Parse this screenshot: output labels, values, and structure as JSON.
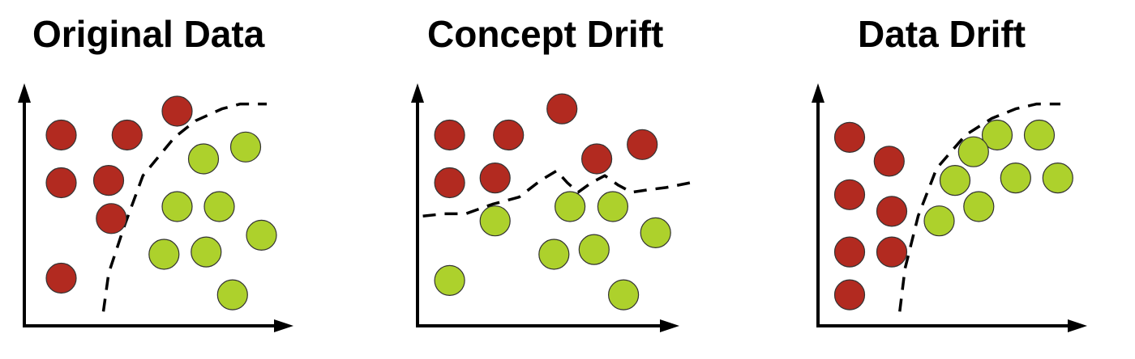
{
  "colors": {
    "class_a": "#b22a20",
    "class_b": "#add12c",
    "outline": "#333333",
    "axis": "#000000",
    "boundary": "#000000"
  },
  "panels": [
    {
      "title": "Original Data",
      "points": [
        {
          "class": "a",
          "x": 1.4,
          "y": 8.0
        },
        {
          "class": "a",
          "x": 3.9,
          "y": 8.0
        },
        {
          "class": "a",
          "x": 5.8,
          "y": 9.0
        },
        {
          "class": "a",
          "x": 1.4,
          "y": 6.0
        },
        {
          "class": "a",
          "x": 3.2,
          "y": 6.1
        },
        {
          "class": "a",
          "x": 3.3,
          "y": 4.5
        },
        {
          "class": "a",
          "x": 1.4,
          "y": 2.0
        },
        {
          "class": "b",
          "x": 6.8,
          "y": 7.0
        },
        {
          "class": "b",
          "x": 8.4,
          "y": 7.5
        },
        {
          "class": "b",
          "x": 5.8,
          "y": 5.0
        },
        {
          "class": "b",
          "x": 7.4,
          "y": 5.0
        },
        {
          "class": "b",
          "x": 9.0,
          "y": 3.8
        },
        {
          "class": "b",
          "x": 5.3,
          "y": 3.0
        },
        {
          "class": "b",
          "x": 6.9,
          "y": 3.1
        },
        {
          "class": "b",
          "x": 7.9,
          "y": 1.3
        }
      ],
      "boundary": [
        [
          3.0,
          0.6
        ],
        [
          3.2,
          2.2
        ],
        [
          3.8,
          4.2
        ],
        [
          4.5,
          6.3
        ],
        [
          5.7,
          7.9
        ],
        [
          6.5,
          8.6
        ],
        [
          7.5,
          9.1
        ],
        [
          8.2,
          9.3
        ],
        [
          9.2,
          9.3
        ]
      ]
    },
    {
      "title": "Concept Drift",
      "points": [
        {
          "class": "a",
          "x": 1.2,
          "y": 8.0
        },
        {
          "class": "a",
          "x": 3.4,
          "y": 8.0
        },
        {
          "class": "a",
          "x": 5.4,
          "y": 9.1
        },
        {
          "class": "a",
          "x": 6.7,
          "y": 7.0
        },
        {
          "class": "a",
          "x": 8.4,
          "y": 7.6
        },
        {
          "class": "a",
          "x": 1.2,
          "y": 6.0
        },
        {
          "class": "a",
          "x": 2.9,
          "y": 6.2
        },
        {
          "class": "b",
          "x": 2.9,
          "y": 4.4
        },
        {
          "class": "b",
          "x": 5.7,
          "y": 5.0
        },
        {
          "class": "b",
          "x": 7.3,
          "y": 5.0
        },
        {
          "class": "b",
          "x": 8.9,
          "y": 3.9
        },
        {
          "class": "b",
          "x": 5.1,
          "y": 3.0
        },
        {
          "class": "b",
          "x": 6.6,
          "y": 3.2
        },
        {
          "class": "b",
          "x": 7.7,
          "y": 1.3
        },
        {
          "class": "b",
          "x": 1.2,
          "y": 1.9
        }
      ],
      "boundary": [
        [
          0.2,
          4.6
        ],
        [
          1.0,
          4.7
        ],
        [
          1.8,
          4.7
        ],
        [
          2.8,
          5.1
        ],
        [
          3.8,
          5.4
        ],
        [
          4.6,
          6.1
        ],
        [
          5.2,
          6.5
        ],
        [
          5.6,
          6.0
        ],
        [
          6.0,
          5.6
        ],
        [
          6.5,
          6.0
        ],
        [
          7.0,
          6.3
        ],
        [
          7.5,
          5.9
        ],
        [
          8.0,
          5.6
        ],
        [
          8.6,
          5.7
        ],
        [
          9.3,
          5.8
        ],
        [
          10.2,
          6.0
        ]
      ]
    },
    {
      "title": "Data Drift",
      "points": [
        {
          "class": "a",
          "x": 1.2,
          "y": 7.9
        },
        {
          "class": "a",
          "x": 2.7,
          "y": 6.9
        },
        {
          "class": "a",
          "x": 1.2,
          "y": 5.5
        },
        {
          "class": "a",
          "x": 2.8,
          "y": 4.8
        },
        {
          "class": "a",
          "x": 1.2,
          "y": 3.1
        },
        {
          "class": "a",
          "x": 2.8,
          "y": 3.1
        },
        {
          "class": "a",
          "x": 1.2,
          "y": 1.3
        },
        {
          "class": "b",
          "x": 6.8,
          "y": 8.0
        },
        {
          "class": "b",
          "x": 8.4,
          "y": 8.0
        },
        {
          "class": "b",
          "x": 5.9,
          "y": 7.3
        },
        {
          "class": "b",
          "x": 5.2,
          "y": 6.1
        },
        {
          "class": "b",
          "x": 7.5,
          "y": 6.2
        },
        {
          "class": "b",
          "x": 9.1,
          "y": 6.2
        },
        {
          "class": "b",
          "x": 6.1,
          "y": 5.0
        },
        {
          "class": "b",
          "x": 4.6,
          "y": 4.4
        }
      ],
      "boundary": [
        [
          3.1,
          0.6
        ],
        [
          3.3,
          2.4
        ],
        [
          3.8,
          4.6
        ],
        [
          4.5,
          6.6
        ],
        [
          5.6,
          8.0
        ],
        [
          6.6,
          8.7
        ],
        [
          7.5,
          9.1
        ],
        [
          8.3,
          9.3
        ],
        [
          9.2,
          9.3
        ]
      ]
    }
  ]
}
